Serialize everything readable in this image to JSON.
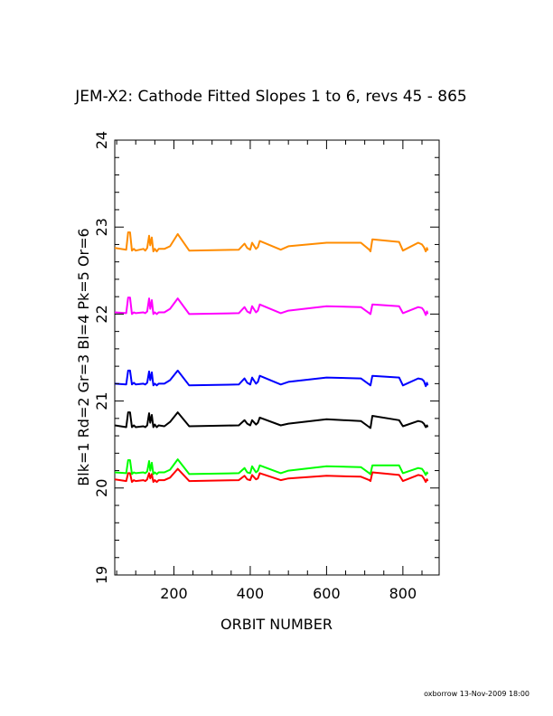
{
  "chart_data": {
    "type": "line",
    "title": "JEM-X2: Cathode Fitted Slopes 1 to 6, revs 45 - 865",
    "xlabel": "ORBIT NUMBER",
    "ylabel": "Blk=1 Rd=2 Gr=3 Bl=4 Pk=5 Or=6",
    "xlim": [
      45,
      895
    ],
    "ylim": [
      19,
      24
    ],
    "xticks": [
      200,
      400,
      600,
      800
    ],
    "yticks": [
      19,
      20,
      21,
      22,
      23,
      24
    ],
    "grid": false,
    "footer": "oxborrow 13-Nov-2009 18:00",
    "series": [
      {
        "color": "#000000",
        "x": [
          45,
          75,
          80,
          85,
          90,
          95,
          100,
          120,
          125,
          130,
          135,
          138,
          142,
          146,
          150,
          155,
          160,
          175,
          190,
          210,
          240,
          370,
          385,
          392,
          400,
          405,
          415,
          420,
          425,
          480,
          500,
          600,
          690,
          712,
          715,
          720,
          790,
          800,
          840,
          850,
          855,
          860,
          863,
          865
        ],
        "values": [
          20.72,
          20.7,
          20.87,
          20.87,
          20.7,
          20.72,
          20.7,
          20.71,
          20.7,
          20.72,
          20.86,
          20.75,
          20.84,
          20.7,
          20.73,
          20.7,
          20.72,
          20.71,
          20.76,
          20.87,
          20.71,
          20.72,
          20.78,
          20.74,
          20.72,
          20.78,
          20.73,
          20.75,
          20.81,
          20.72,
          20.74,
          20.79,
          20.77,
          20.7,
          20.69,
          20.83,
          20.78,
          20.71,
          20.77,
          20.76,
          20.74,
          20.7,
          20.72,
          20.7
        ]
      },
      {
        "color": "#ff0000",
        "x": [
          45,
          75,
          80,
          85,
          90,
          95,
          100,
          120,
          125,
          130,
          135,
          138,
          142,
          146,
          150,
          155,
          160,
          175,
          190,
          210,
          240,
          370,
          385,
          392,
          400,
          405,
          415,
          420,
          425,
          480,
          500,
          600,
          690,
          712,
          715,
          720,
          790,
          800,
          840,
          850,
          855,
          860,
          863,
          865
        ],
        "values": [
          20.1,
          20.08,
          20.17,
          20.17,
          20.07,
          20.09,
          20.08,
          20.09,
          20.08,
          20.1,
          20.17,
          20.11,
          20.16,
          20.07,
          20.09,
          20.07,
          20.09,
          20.09,
          20.12,
          20.22,
          20.08,
          20.09,
          20.14,
          20.1,
          20.09,
          20.15,
          20.1,
          20.11,
          20.17,
          20.09,
          20.11,
          20.14,
          20.13,
          20.09,
          20.08,
          20.18,
          20.15,
          20.08,
          20.15,
          20.14,
          20.11,
          20.07,
          20.1,
          20.08
        ]
      },
      {
        "color": "#00ff00",
        "x": [
          45,
          75,
          80,
          85,
          90,
          95,
          100,
          120,
          125,
          130,
          135,
          138,
          142,
          146,
          150,
          155,
          160,
          175,
          190,
          210,
          240,
          370,
          385,
          392,
          400,
          405,
          415,
          420,
          425,
          480,
          500,
          600,
          690,
          712,
          715,
          720,
          790,
          800,
          840,
          850,
          855,
          860,
          863,
          865
        ],
        "values": [
          20.18,
          20.17,
          20.32,
          20.32,
          20.16,
          20.18,
          20.17,
          20.18,
          20.17,
          20.19,
          20.31,
          20.2,
          20.29,
          20.16,
          20.18,
          20.16,
          20.18,
          20.18,
          20.21,
          20.33,
          20.16,
          20.17,
          20.23,
          20.18,
          20.17,
          20.25,
          20.18,
          20.2,
          20.26,
          20.17,
          20.2,
          20.25,
          20.24,
          20.17,
          20.16,
          20.26,
          20.26,
          20.17,
          20.23,
          20.22,
          20.19,
          20.15,
          20.18,
          20.16
        ]
      },
      {
        "color": "#0000ff",
        "x": [
          45,
          75,
          80,
          85,
          90,
          95,
          100,
          120,
          125,
          130,
          135,
          138,
          142,
          146,
          150,
          155,
          160,
          175,
          190,
          210,
          240,
          370,
          385,
          392,
          400,
          405,
          415,
          420,
          425,
          480,
          500,
          600,
          690,
          712,
          715,
          720,
          790,
          800,
          840,
          850,
          855,
          860,
          863,
          865
        ],
        "values": [
          21.2,
          21.19,
          21.35,
          21.35,
          21.19,
          21.21,
          21.19,
          21.2,
          21.19,
          21.21,
          21.34,
          21.24,
          21.33,
          21.18,
          21.2,
          21.18,
          21.2,
          21.2,
          21.24,
          21.35,
          21.18,
          21.19,
          21.26,
          21.21,
          21.19,
          21.27,
          21.2,
          21.22,
          21.29,
          21.19,
          21.22,
          21.27,
          21.26,
          21.19,
          21.18,
          21.29,
          21.27,
          21.18,
          21.26,
          21.25,
          21.23,
          21.17,
          21.21,
          21.18
        ]
      },
      {
        "color": "#ff00ff",
        "x": [
          45,
          75,
          80,
          85,
          90,
          95,
          100,
          120,
          125,
          130,
          135,
          138,
          142,
          146,
          150,
          155,
          160,
          175,
          190,
          210,
          240,
          370,
          385,
          392,
          400,
          405,
          415,
          420,
          425,
          480,
          500,
          600,
          690,
          712,
          715,
          720,
          790,
          800,
          840,
          850,
          855,
          860,
          863,
          865
        ],
        "values": [
          22.02,
          22.01,
          22.19,
          22.19,
          22.0,
          22.02,
          22.01,
          22.02,
          22.01,
          22.03,
          22.18,
          22.06,
          22.16,
          22.0,
          22.02,
          22.0,
          22.02,
          22.02,
          22.06,
          22.18,
          22.0,
          22.01,
          22.08,
          22.03,
          22.01,
          22.09,
          22.02,
          22.04,
          22.11,
          22.01,
          22.04,
          22.09,
          22.08,
          22.01,
          22.0,
          22.11,
          22.09,
          22.01,
          22.08,
          22.07,
          22.04,
          21.99,
          22.03,
          22.0
        ]
      },
      {
        "color": "#ff8c00",
        "x": [
          45,
          75,
          80,
          85,
          90,
          95,
          100,
          120,
          125,
          130,
          135,
          138,
          142,
          146,
          150,
          155,
          160,
          175,
          190,
          210,
          240,
          370,
          385,
          392,
          400,
          405,
          415,
          420,
          425,
          480,
          500,
          600,
          690,
          712,
          715,
          720,
          790,
          800,
          840,
          850,
          855,
          860,
          863,
          865
        ],
        "values": [
          22.76,
          22.74,
          22.94,
          22.94,
          22.73,
          22.75,
          22.73,
          22.75,
          22.73,
          22.76,
          22.9,
          22.79,
          22.88,
          22.72,
          22.75,
          22.72,
          22.75,
          22.75,
          22.78,
          22.92,
          22.73,
          22.74,
          22.81,
          22.76,
          22.74,
          22.82,
          22.75,
          22.77,
          22.84,
          22.74,
          22.78,
          22.82,
          22.82,
          22.74,
          22.72,
          22.86,
          22.83,
          22.73,
          22.82,
          22.8,
          22.77,
          22.72,
          22.76,
          22.73
        ]
      }
    ]
  }
}
